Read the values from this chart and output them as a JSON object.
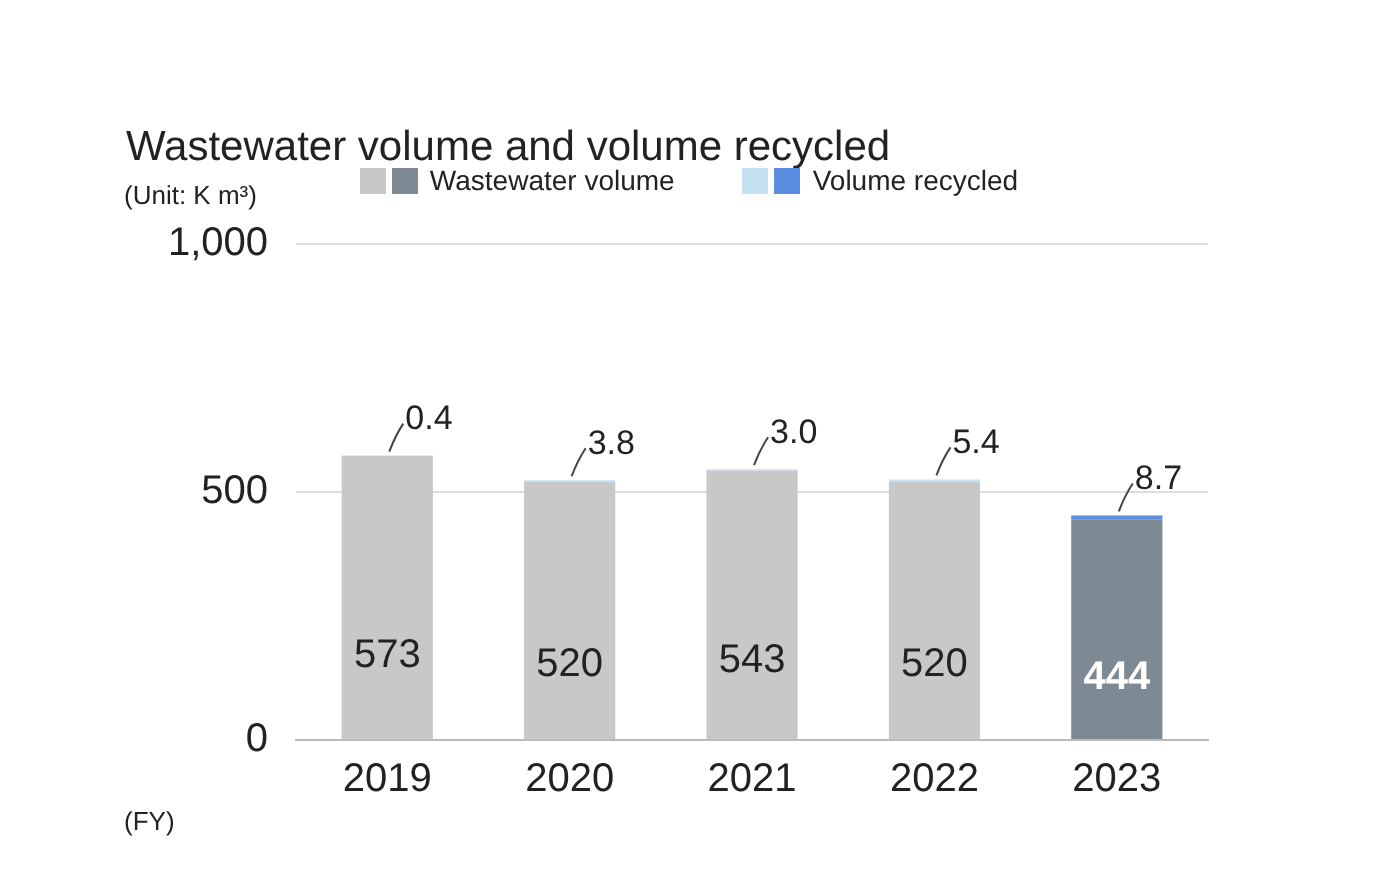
{
  "chart_data": {
    "type": "bar",
    "title": "Wastewater volume and volume recycled",
    "ylabel": "(Unit: K m³)",
    "xlabel": "(FY)",
    "categories": [
      "2019",
      "2020",
      "2021",
      "2022",
      "2023"
    ],
    "series": [
      {
        "name": "Wastewater volume",
        "colors": [
          "#c8c8c8",
          "#c8c8c8",
          "#c8c8c8",
          "#c8c8c8",
          "#7d8a93"
        ],
        "values": [
          573,
          520,
          543,
          520,
          444
        ],
        "value_labels": [
          "573",
          "520",
          "543",
          "520",
          "444"
        ]
      },
      {
        "name": "Volume recycled",
        "colors": [
          "#c5e2f2",
          "#c5e2f2",
          "#c5e2f2",
          "#c5e2f2",
          "#5b8ee0"
        ],
        "values": [
          0.4,
          3.8,
          3.0,
          5.4,
          8.7
        ],
        "value_labels": [
          "0.4",
          "3.8",
          "3.0",
          "5.4",
          "8.7"
        ]
      }
    ],
    "stacked": true,
    "ylim": [
      0,
      1000
    ],
    "yticks": [
      0,
      500,
      {
        "value": 1000,
        "label": "1,000"
      }
    ],
    "grid": "y",
    "legend": "top"
  }
}
